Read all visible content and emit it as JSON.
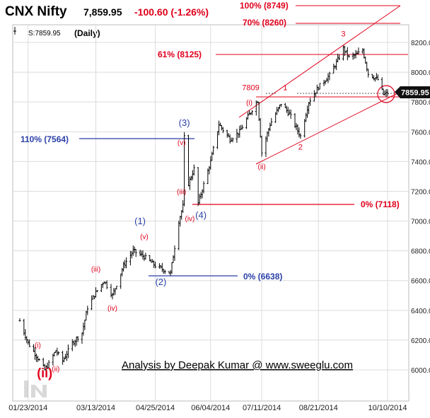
{
  "header": {
    "symbol": "CNX Nifty",
    "price": "7,859.95",
    "change": "-100.60 (-1.26%)",
    "status_label": "S:7859.95",
    "period": "(Daily)"
  },
  "colors": {
    "price_bars": "#000000",
    "red_annotations": "#e0001b",
    "blue_annotations": "#2a3fa8",
    "grid": "#dcdcdc",
    "price_tag_bg": "#111111"
  },
  "credit": "Analysis by Deepak Kumar @ www.sweeglu.com",
  "price_tag": "7859.95",
  "chart_data": {
    "type": "ohlc",
    "title": "CNX Nifty",
    "period": "Daily",
    "ylim": [
      5800,
      8300
    ],
    "yticks": [
      "6000.00",
      "6200.00",
      "6400.00",
      "6600.00",
      "6800.00",
      "7000.00",
      "7200.00",
      "7400.00",
      "7600.00",
      "7800.00",
      "8000.00",
      "8200.00"
    ],
    "yticks_values": [
      6000,
      6200,
      6400,
      6600,
      6800,
      7000,
      7200,
      7400,
      7600,
      7800,
      8000,
      8200
    ],
    "xticks": [
      "01/23/2014",
      "03/13/2014",
      "04/25/2014",
      "06/04/2014",
      "07/11/2014",
      "08/21/2014",
      "10/10/2014"
    ],
    "grid": true,
    "last_close": 7859.95,
    "price_path": [
      {
        "date": "2014-01-17",
        "close": 6330
      },
      {
        "date": "2014-01-23",
        "close": 6180
      },
      {
        "date": "2014-01-28",
        "close": 6110
      },
      {
        "date": "2014-02-04",
        "close": 6000
      },
      {
        "date": "2014-02-07",
        "close": 6040
      },
      {
        "date": "2014-02-12",
        "close": 6130
      },
      {
        "date": "2014-02-17",
        "close": 6060
      },
      {
        "date": "2014-02-24",
        "close": 6180
      },
      {
        "date": "2014-03-03",
        "close": 6250
      },
      {
        "date": "2014-03-07",
        "close": 6420
      },
      {
        "date": "2014-03-13",
        "close": 6520
      },
      {
        "date": "2014-03-19",
        "close": 6600
      },
      {
        "date": "2014-03-25",
        "close": 6500
      },
      {
        "date": "2014-04-02",
        "close": 6700
      },
      {
        "date": "2014-04-09",
        "close": 6800
      },
      {
        "date": "2014-04-17",
        "close": 6760
      },
      {
        "date": "2014-04-25",
        "close": 6700
      },
      {
        "date": "2014-05-06",
        "close": 6650
      },
      {
        "date": "2014-05-12",
        "close": 7000
      },
      {
        "date": "2014-05-15",
        "close": 7100
      },
      {
        "date": "2014-05-16",
        "close": 7560
      },
      {
        "date": "2014-05-19",
        "close": 7250
      },
      {
        "date": "2014-05-23",
        "close": 7350
      },
      {
        "date": "2014-05-26",
        "close": 7120
      },
      {
        "date": "2014-06-04",
        "close": 7400
      },
      {
        "date": "2014-06-10",
        "close": 7650
      },
      {
        "date": "2014-06-18",
        "close": 7550
      },
      {
        "date": "2014-06-25",
        "close": 7600
      },
      {
        "date": "2014-07-04",
        "close": 7750
      },
      {
        "date": "2014-07-08",
        "close": 7809
      },
      {
        "date": "2014-07-11",
        "close": 7460
      },
      {
        "date": "2014-07-17",
        "close": 7650
      },
      {
        "date": "2014-07-25",
        "close": 7790
      },
      {
        "date": "2014-07-31",
        "close": 7720
      },
      {
        "date": "2014-08-08",
        "close": 7570
      },
      {
        "date": "2014-08-14",
        "close": 7800
      },
      {
        "date": "2014-08-21",
        "close": 7900
      },
      {
        "date": "2014-08-29",
        "close": 7980
      },
      {
        "date": "2014-09-05",
        "close": 8100
      },
      {
        "date": "2014-09-08",
        "close": 8160
      },
      {
        "date": "2014-09-12",
        "close": 8100
      },
      {
        "date": "2014-09-18",
        "close": 8120
      },
      {
        "date": "2014-09-22",
        "close": 8150
      },
      {
        "date": "2014-09-26",
        "close": 7990
      },
      {
        "date": "2014-10-03",
        "close": 7950
      },
      {
        "date": "2014-10-07",
        "close": 7850
      },
      {
        "date": "2014-10-10",
        "close": 7859.95
      }
    ],
    "levels": [
      {
        "label": "100% (8749)",
        "value": 8749,
        "color": "red"
      },
      {
        "label": "70% (8260)",
        "value": 8260,
        "color": "red"
      },
      {
        "label": "61% (8125)",
        "value": 8125,
        "color": "red"
      },
      {
        "label": "110% (7564)",
        "value": 7564,
        "color": "blue"
      },
      {
        "label": "0% (7118)",
        "value": 7118,
        "color": "red"
      },
      {
        "label": "0% (6638)",
        "value": 6638,
        "color": "blue"
      }
    ],
    "wave_labels": [
      {
        "text": "(ii)",
        "date": "2014-02-04",
        "price": 5950,
        "color": "red",
        "size": "large"
      },
      {
        "text": "(i)",
        "date": "2014-01-30",
        "price": 6150,
        "color": "red"
      },
      {
        "text": "(ii)",
        "date": "2014-02-12",
        "price": 5990,
        "color": "red"
      },
      {
        "text": "(iii)",
        "date": "2014-03-13",
        "price": 6660,
        "color": "red"
      },
      {
        "text": "(iv)",
        "date": "2014-03-25",
        "price": 6400,
        "color": "red"
      },
      {
        "text": "(v)",
        "date": "2014-04-17",
        "price": 6880,
        "color": "red"
      },
      {
        "text": "(1)",
        "date": "2014-04-14",
        "price": 6980,
        "color": "blue"
      },
      {
        "text": "(2)",
        "date": "2014-04-29",
        "price": 6570,
        "color": "blue"
      },
      {
        "text": "(iii)",
        "date": "2014-05-14",
        "price": 7180,
        "color": "red"
      },
      {
        "text": "(iv)",
        "date": "2014-05-20",
        "price": 7000,
        "color": "red"
      },
      {
        "text": "(v)",
        "date": "2014-05-14",
        "price": 7510,
        "color": "red"
      },
      {
        "text": "(3)",
        "date": "2014-05-16",
        "price": 7640,
        "color": "blue"
      },
      {
        "text": "(4)",
        "date": "2014-05-28",
        "price": 7020,
        "color": "blue"
      },
      {
        "text": "(i)",
        "date": "2014-07-02",
        "price": 7780,
        "color": "red"
      },
      {
        "text": "7809",
        "date": "2014-07-03",
        "price": 7880,
        "color": "red"
      },
      {
        "text": "(ii)",
        "date": "2014-07-11",
        "price": 7350,
        "color": "red"
      },
      {
        "text": "1",
        "date": "2014-07-28",
        "price": 7880,
        "color": "red"
      },
      {
        "text": "2",
        "date": "2014-08-08",
        "price": 7480,
        "color": "red"
      },
      {
        "text": "3",
        "date": "2014-09-08",
        "price": 8240,
        "color": "red"
      }
    ]
  }
}
